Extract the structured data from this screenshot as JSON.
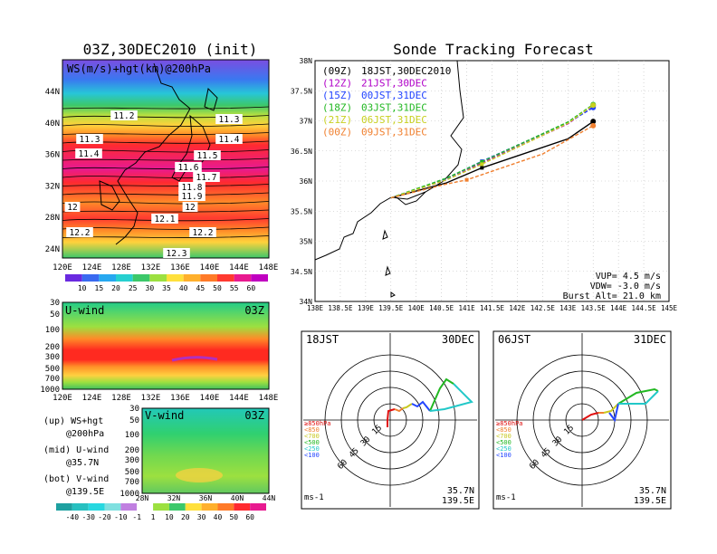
{
  "left_title": "03Z,30DEC2010 (init)",
  "right_title": "Sonde Tracking Forecast",
  "ws_map": {
    "label": "WS(m/s)+hgt(km)@200hPa",
    "lat_ticks": [
      "44N",
      "40N",
      "36N",
      "32N",
      "28N",
      "24N"
    ],
    "lon_ticks": [
      "120E",
      "124E",
      "128E",
      "132E",
      "136E",
      "140E",
      "144E",
      "148E"
    ],
    "hgt_labels": [
      "11.2",
      "11.3",
      "11.3",
      "11.4",
      "11.4",
      "11.5",
      "11.6",
      "11.7",
      "11.8",
      "11.9",
      "12",
      "12",
      "12.1",
      "12.2",
      "12.2",
      "12.3"
    ],
    "colorbar_labels": [
      "10",
      "15",
      "20",
      "25",
      "30",
      "35",
      "40",
      "45",
      "50",
      "55",
      "60"
    ]
  },
  "u_panel": {
    "label": "U-wind",
    "time": "03Z",
    "p_ticks": [
      "30",
      "50",
      "100",
      "200",
      "300",
      "500",
      "700",
      "1000"
    ],
    "lon_ticks": [
      "120E",
      "124E",
      "128E",
      "132E",
      "136E",
      "140E",
      "144E",
      "148E"
    ]
  },
  "v_panel": {
    "label": "V-wind",
    "time": "03Z",
    "p_ticks": [
      "30",
      "50",
      "100",
      "200",
      "300",
      "500",
      "700",
      "1000"
    ],
    "lat_ticks": [
      "28N",
      "32N",
      "36N",
      "40N",
      "44N"
    ],
    "colorbar_labels": [
      "-40",
      "-30",
      "-20",
      "-10",
      "-1",
      "1",
      "10",
      "20",
      "30",
      "40",
      "50",
      "60"
    ]
  },
  "legend_notes": [
    {
      "line1": "(up) WS+hgt",
      "line2": "@200hPa"
    },
    {
      "line1": "(mid) U-wind",
      "line2": "@35.7N"
    },
    {
      "line1": "(bot) V-wind",
      "line2": "@139.5E"
    }
  ],
  "tracking": {
    "lat_ticks": [
      "38N",
      "37.5N",
      "37N",
      "36.5N",
      "36N",
      "35.5N",
      "35N",
      "34.5N",
      "34N"
    ],
    "lon_ticks": [
      "138E",
      "138.5E",
      "139E",
      "139.5E",
      "140E",
      "140.5E",
      "141E",
      "141.5E",
      "142E",
      "142.5E",
      "143E",
      "143.5E",
      "144E",
      "144.5E",
      "145E"
    ],
    "runs": [
      {
        "code": "(09Z)",
        "time": "18JST,30DEC2010",
        "color": "#000000"
      },
      {
        "code": "(12Z)",
        "time": "21JST,30DEC",
        "color": "#b000c8"
      },
      {
        "code": "(15Z)",
        "time": "00JST,31DEC",
        "color": "#2244ff"
      },
      {
        "code": "(18Z)",
        "time": "03JST,31DEC",
        "color": "#22b822"
      },
      {
        "code": "(21Z)",
        "time": "06JST,31DEC",
        "color": "#c8d020"
      },
      {
        "code": "(00Z)",
        "time": "09JST,31DEC",
        "color": "#f08030"
      }
    ],
    "vup": "VUP= 4.5 m/s",
    "vdw": "VDW= -3.0 m/s",
    "burst": "Burst Alt= 21.0 km"
  },
  "hodo_left": {
    "time": "18JST",
    "date": "30DEC",
    "loc1": "35.7N",
    "loc2": "139.5E",
    "unit": "ms-1"
  },
  "hodo_right": {
    "time": "06JST",
    "date": "31DEC",
    "loc1": "35.7N",
    "loc2": "139.5E",
    "unit": "ms-1"
  },
  "hodo_legend": [
    {
      "label": "≥850hPa",
      "color": "#e01010"
    },
    {
      "label": "<850",
      "color": "#f08030"
    },
    {
      "label": "<700",
      "color": "#c8c820"
    },
    {
      "label": "<500",
      "color": "#22b822"
    },
    {
      "label": "<250",
      "color": "#22c8c8"
    },
    {
      "label": "<100",
      "color": "#2244ff"
    }
  ],
  "hodo_ring_labels": [
    "15",
    "30",
    "45",
    "60"
  ],
  "chart_data": [
    {
      "type": "line",
      "title": "Sonde Tracking Forecast",
      "xlim": [
        138,
        145
      ],
      "ylim": [
        34,
        38
      ],
      "series": [
        {
          "name": "(09Z) 18JST,30DEC2010",
          "x": [
            139.5,
            140.6,
            141.3,
            143.0,
            143.5
          ],
          "y": [
            35.72,
            35.97,
            36.22,
            36.7,
            36.99
          ]
        },
        {
          "name": "(12Z) 21JST,30DEC",
          "x": [
            139.5,
            140.6,
            141.3,
            143.0,
            143.5
          ],
          "y": [
            35.72,
            36.02,
            36.3,
            36.95,
            37.25
          ]
        },
        {
          "name": "(15Z) 00JST,31DEC",
          "x": [
            139.5,
            140.6,
            141.3,
            143.0,
            143.5
          ],
          "y": [
            35.72,
            36.04,
            36.33,
            36.97,
            37.22
          ]
        },
        {
          "name": "(18Z) 03JST,31DEC",
          "x": [
            139.5,
            140.6,
            141.3,
            143.0,
            143.5
          ],
          "y": [
            35.72,
            36.05,
            36.32,
            36.98,
            37.27
          ]
        },
        {
          "name": "(21Z) 06JST,31DEC",
          "x": [
            139.5,
            140.6,
            141.3,
            143.0,
            143.5
          ],
          "y": [
            35.72,
            36.02,
            36.28,
            36.96,
            37.26
          ]
        },
        {
          "name": "(00Z) 09JST,31DEC",
          "x": [
            139.5,
            140.6,
            141.0,
            142.5,
            143.5
          ],
          "y": [
            35.72,
            35.95,
            36.02,
            36.45,
            36.92
          ]
        }
      ]
    }
  ]
}
